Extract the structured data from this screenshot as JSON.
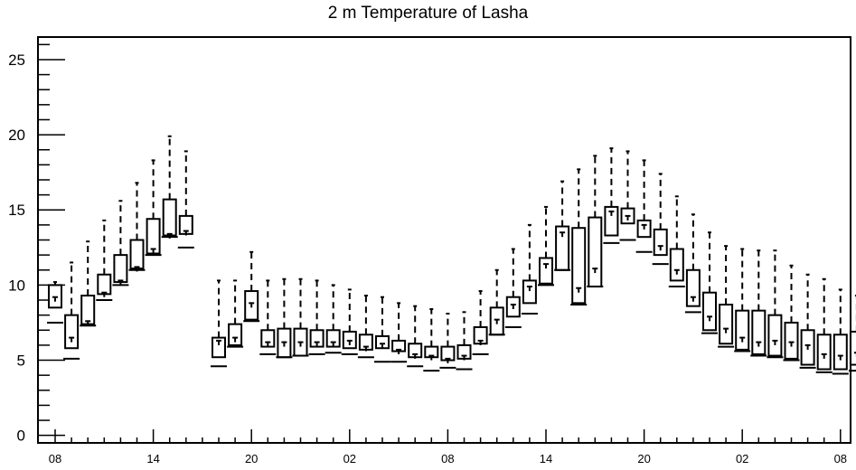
{
  "chart_data": {
    "type": "boxplot",
    "title": "2 m Temperature of Lasha",
    "xlabel": "",
    "ylabel": "",
    "ylim": [
      -0.5,
      26.5
    ],
    "yticks": [
      0,
      5,
      10,
      15,
      20,
      25
    ],
    "x_tick_labels": [
      {
        "label": "08",
        "index": 0
      },
      {
        "label": "14",
        "index": 6
      },
      {
        "label": "20",
        "index": 12
      },
      {
        "label": "02",
        "index": 18
      },
      {
        "label": "08",
        "index": 24
      },
      {
        "label": "14",
        "index": 30
      },
      {
        "label": "20",
        "index": 36
      },
      {
        "label": "02",
        "index": 42
      },
      {
        "label": "08",
        "index": 48
      }
    ],
    "grid": false,
    "legend": "none",
    "series": [
      {
        "boxes": [
          {
            "min": 7.5,
            "q1": 8.5,
            "median": 9.2,
            "q3": 10.0,
            "max": 10.2
          },
          {
            "min": 5.1,
            "q1": 5.8,
            "median": 6.5,
            "q3": 8.0,
            "max": 11.5
          },
          {
            "min": 7.3,
            "q1": 7.4,
            "median": 7.6,
            "q3": 9.3,
            "max": 12.9
          },
          {
            "min": 9.0,
            "q1": 9.4,
            "median": 9.5,
            "q3": 10.7,
            "max": 14.3
          },
          {
            "min": 10.0,
            "q1": 10.2,
            "median": 10.3,
            "q3": 12.0,
            "max": 15.6
          },
          {
            "min": 11.0,
            "q1": 11.1,
            "median": 11.2,
            "q3": 13.0,
            "max": 16.8
          },
          {
            "min": 12.0,
            "q1": 12.1,
            "median": 12.4,
            "q3": 14.4,
            "max": 18.3
          },
          {
            "min": 13.2,
            "q1": 13.3,
            "median": 13.4,
            "q3": 15.7,
            "max": 19.9
          },
          {
            "min": 12.5,
            "q1": 13.4,
            "median": 13.6,
            "q3": 14.6,
            "max": 18.9
          },
          null,
          {
            "min": 4.6,
            "q1": 5.2,
            "median": 6.3,
            "q3": 6.5,
            "max": 10.3
          },
          {
            "min": 5.9,
            "q1": 6.0,
            "median": 6.5,
            "q3": 7.4,
            "max": 10.3
          },
          {
            "min": 7.6,
            "q1": 7.7,
            "median": 8.8,
            "q3": 9.6,
            "max": 12.2
          },
          {
            "min": 5.4,
            "q1": 5.9,
            "median": 6.2,
            "q3": 7.0,
            "max": 10.3
          },
          {
            "min": 5.2,
            "q1": 5.2,
            "median": 6.2,
            "q3": 7.1,
            "max": 10.4
          },
          {
            "min": 5.3,
            "q1": 5.3,
            "median": 6.2,
            "q3": 7.1,
            "max": 10.4
          },
          {
            "min": 5.4,
            "q1": 5.9,
            "median": 6.2,
            "q3": 7.0,
            "max": 10.3
          },
          {
            "min": 5.5,
            "q1": 5.9,
            "median": 6.2,
            "q3": 7.0,
            "max": 10.0
          },
          {
            "min": 5.4,
            "q1": 5.8,
            "median": 6.3,
            "q3": 6.9,
            "max": 9.7
          },
          {
            "min": 5.2,
            "q1": 5.7,
            "median": 5.9,
            "q3": 6.7,
            "max": 9.3
          },
          {
            "min": 4.9,
            "q1": 5.8,
            "median": 6.1,
            "q3": 6.6,
            "max": 9.2
          },
          {
            "min": 4.9,
            "q1": 5.6,
            "median": 5.7,
            "q3": 6.3,
            "max": 8.8
          },
          {
            "min": 4.6,
            "q1": 5.2,
            "median": 5.4,
            "q3": 6.1,
            "max": 8.6
          },
          {
            "min": 4.3,
            "q1": 5.2,
            "median": 5.3,
            "q3": 5.9,
            "max": 8.4
          },
          {
            "min": 4.5,
            "q1": 5.0,
            "median": 5.1,
            "q3": 5.9,
            "max": 8.1
          },
          {
            "min": 4.4,
            "q1": 5.1,
            "median": 5.3,
            "q3": 6.0,
            "max": 8.2
          },
          {
            "min": 5.4,
            "q1": 6.1,
            "median": 6.3,
            "q3": 7.2,
            "max": 9.6
          },
          {
            "min": 6.7,
            "q1": 6.7,
            "median": 7.7,
            "q3": 8.5,
            "max": 11.0
          },
          {
            "min": 7.2,
            "q1": 7.9,
            "median": 8.7,
            "q3": 9.2,
            "max": 12.4
          },
          {
            "min": 8.1,
            "q1": 8.8,
            "median": 9.9,
            "q3": 10.3,
            "max": 14.0
          },
          {
            "min": 10.0,
            "q1": 10.1,
            "median": 11.4,
            "q3": 11.8,
            "max": 15.2
          },
          {
            "min": 11.0,
            "q1": 11.0,
            "median": 13.5,
            "q3": 13.9,
            "max": 16.9
          },
          {
            "min": 8.7,
            "q1": 8.8,
            "median": 9.8,
            "q3": 13.8,
            "max": 17.7
          },
          {
            "min": 9.9,
            "q1": 9.9,
            "median": 11.1,
            "q3": 14.5,
            "max": 18.6
          },
          {
            "min": 12.8,
            "q1": 13.3,
            "median": 14.9,
            "q3": 15.2,
            "max": 19.1
          },
          {
            "min": 13.0,
            "q1": 14.1,
            "median": 14.6,
            "q3": 15.1,
            "max": 18.9
          },
          {
            "min": 12.2,
            "q1": 13.2,
            "median": 14.0,
            "q3": 14.3,
            "max": 18.3
          },
          {
            "min": 11.4,
            "q1": 12.0,
            "median": 12.6,
            "q3": 13.7,
            "max": 17.4
          },
          {
            "min": 9.9,
            "q1": 10.3,
            "median": 11.0,
            "q3": 12.4,
            "max": 15.9
          },
          {
            "min": 8.2,
            "q1": 8.6,
            "median": 9.2,
            "q3": 11.0,
            "max": 14.7
          },
          {
            "min": 6.8,
            "q1": 7.0,
            "median": 7.9,
            "q3": 9.5,
            "max": 13.5
          },
          {
            "min": 5.9,
            "q1": 6.1,
            "median": 7.1,
            "q3": 8.7,
            "max": 12.6
          },
          {
            "min": 5.6,
            "q1": 5.7,
            "median": 6.5,
            "q3": 8.3,
            "max": 12.4
          },
          {
            "min": 5.3,
            "q1": 5.4,
            "median": 6.2,
            "q3": 8.3,
            "max": 12.3
          },
          {
            "min": 5.2,
            "q1": 5.3,
            "median": 6.3,
            "q3": 8.0,
            "max": 12.3
          },
          {
            "min": 5.0,
            "q1": 5.1,
            "median": 6.2,
            "q3": 7.5,
            "max": 11.3
          },
          {
            "min": 4.5,
            "q1": 4.7,
            "median": 6.0,
            "q3": 7.0,
            "max": 10.7
          },
          {
            "min": 4.2,
            "q1": 4.4,
            "median": 5.4,
            "q3": 6.7,
            "max": 10.4
          },
          {
            "min": 4.1,
            "q1": 4.4,
            "median": 5.3,
            "q3": 6.7,
            "max": 9.7
          },
          {
            "min": 4.3,
            "q1": 4.7,
            "median": 5.5,
            "q3": 6.9,
            "max": 9.3
          }
        ]
      }
    ]
  }
}
